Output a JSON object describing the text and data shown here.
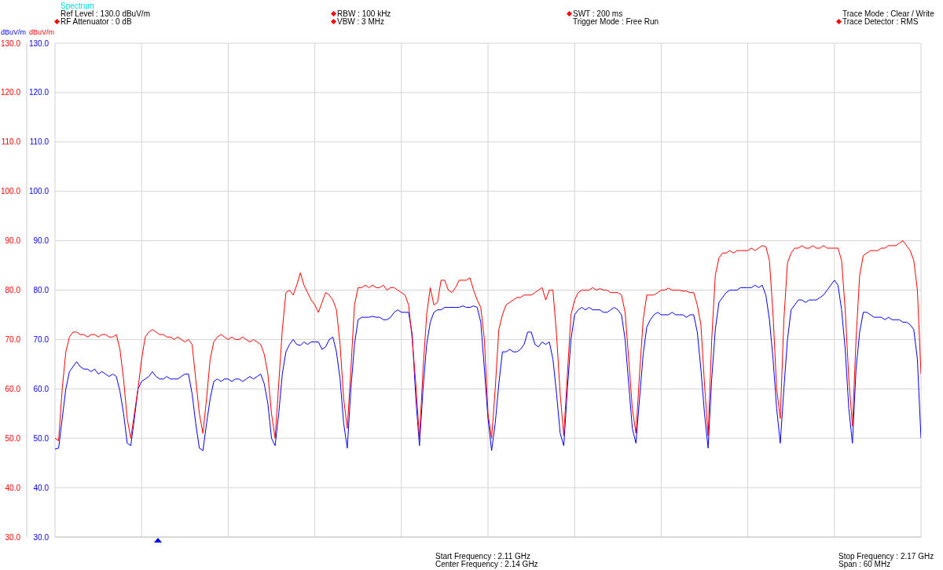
{
  "chart_data": {
    "type": "line",
    "title": "Spectrum",
    "ylabel": "dBuV/m",
    "y2label": "dBuV/m",
    "annotations": [
      "Ref Level : 130.0 dBuV/m",
      "RF Attenuator : 0 dB",
      "RBW : 100 kHz",
      "VBW : 3 MHz",
      "SWT : 200 ms",
      "Trigger Mode : Free Run",
      "Trace Mode : Clear / Write",
      "Trace Detector : RMS",
      "Start Frequency : 2.11 GHz",
      "Center Frequency : 2.14 GHz",
      "Stop Frequency : 2.17 GHz",
      "Span : 60 MHz"
    ],
    "categories": [
      null,
      null,
      null,
      null,
      null,
      null,
      null,
      null,
      null,
      null,
      null,
      null,
      null,
      null,
      null,
      null,
      null,
      null,
      null,
      null,
      null,
      null,
      null,
      null,
      null,
      null,
      null,
      null,
      null,
      null,
      null,
      null,
      null,
      null,
      null,
      null,
      null,
      null,
      null,
      null,
      null,
      null,
      null,
      null,
      null,
      null,
      null,
      null,
      null,
      null,
      null,
      null,
      null,
      null,
      null,
      null,
      null,
      null,
      null,
      null,
      null,
      null,
      null,
      null,
      null,
      null,
      null,
      null,
      null,
      null,
      null,
      null,
      null,
      null,
      null,
      null,
      null,
      null,
      null,
      null,
      null,
      null,
      null,
      null,
      null,
      null,
      null,
      null,
      null,
      null,
      null,
      null,
      null,
      null,
      null,
      null,
      null,
      null,
      null,
      null,
      null,
      null,
      null,
      null,
      null,
      null,
      null,
      null,
      null,
      null,
      null,
      null,
      null,
      null,
      null,
      null,
      null,
      null,
      null,
      null,
      null,
      null,
      null,
      null,
      null,
      null,
      null,
      null,
      null,
      null,
      null,
      null,
      null,
      null,
      null,
      null,
      null,
      null,
      null,
      null,
      null,
      null,
      null,
      null,
      null,
      null,
      null,
      null,
      null,
      null,
      null,
      null,
      null,
      null,
      null,
      null,
      null,
      null,
      null,
      null,
      null,
      null,
      null,
      null,
      null,
      null,
      null,
      null,
      null,
      null,
      null,
      null,
      null,
      null,
      null,
      null,
      null,
      null,
      null,
      null,
      null,
      null,
      null,
      null,
      null,
      null,
      null,
      null,
      null,
      null,
      null,
      null,
      null,
      null,
      null,
      null,
      null,
      null,
      null,
      null,
      null,
      null,
      null,
      null,
      null,
      null,
      null,
      null,
      null,
      null,
      null,
      null,
      null,
      null,
      null,
      null,
      null,
      null,
      null,
      null,
      null,
      null,
      null,
      null,
      null,
      null,
      null,
      null,
      null,
      null,
      null,
      null,
      null,
      null,
      null,
      null,
      null,
      null,
      null,
      null,
      null
    ],
    "ylim": [
      30,
      130
    ],
    "yticks": [
      {
        "value": 30,
        "label": "30.0"
      },
      {
        "value": 40,
        "label": "40.0"
      },
      {
        "value": 50,
        "label": "50.0"
      },
      {
        "value": 60,
        "label": "60.0"
      },
      {
        "value": 70,
        "label": "70.0"
      },
      {
        "value": 80,
        "label": "80.0"
      },
      {
        "value": 90,
        "label": "90.0"
      },
      {
        "value": 100,
        "label": "100.0"
      },
      {
        "value": 110,
        "label": "110.0"
      },
      {
        "value": 120,
        "label": "120.0"
      },
      {
        "value": 130,
        "label": "130.0"
      }
    ],
    "y2lim": [
      30,
      130
    ],
    "y2ticks": [
      {
        "value": 30,
        "label": "30.0"
      },
      {
        "value": 40,
        "label": "40.0"
      },
      {
        "value": 50,
        "label": "50.0"
      },
      {
        "value": 60,
        "label": "60.0"
      },
      {
        "value": 70,
        "label": "70.0"
      },
      {
        "value": 80,
        "label": "80.0"
      },
      {
        "value": 90,
        "label": "90.0"
      },
      {
        "value": 100,
        "label": "100.0"
      },
      {
        "value": 110,
        "label": "110.0"
      },
      {
        "value": 120,
        "label": "120.0"
      },
      {
        "value": 130,
        "label": "130.0"
      }
    ],
    "grid": true,
    "marker": "none",
    "line_style": "solid",
    "series": [
      {
        "color": "#0000ff",
        "axis": "y",
        "values": [
          47.8,
          48,
          54,
          60,
          63.5,
          64.5,
          65.5,
          64.5,
          64,
          64,
          63.5,
          64,
          63,
          63.5,
          63,
          62.5,
          63,
          62.5,
          59.5,
          55,
          49,
          48.5,
          54,
          60,
          61.5,
          62,
          62.5,
          63.5,
          62.5,
          62,
          62,
          62.5,
          62,
          62,
          62,
          62.5,
          63,
          63,
          59,
          53,
          48,
          47.5,
          53,
          58,
          61.5,
          62,
          61.5,
          62,
          62,
          61.5,
          62,
          62,
          61.5,
          62,
          62.5,
          62,
          62.5,
          63,
          61,
          57,
          50,
          48.5,
          55,
          63,
          67.5,
          69,
          70,
          69,
          68.8,
          69.5,
          69,
          69.5,
          69.5,
          69.5,
          68,
          68.5,
          70,
          70.5,
          67.5,
          62,
          53,
          48,
          60,
          69,
          74,
          74.5,
          74.5,
          74.5,
          74.7,
          74.5,
          74.5,
          74,
          74,
          74.5,
          75.5,
          76,
          75.5,
          75.5,
          75.5,
          71,
          58,
          48.5,
          60,
          69,
          73.5,
          75.5,
          76,
          76,
          76.5,
          76.5,
          76.5,
          76.5,
          76.5,
          76.8,
          76.5,
          76.5,
          76.8,
          76.5,
          73.5,
          64,
          54,
          47.5,
          53,
          61,
          67.5,
          67.5,
          68,
          67.5,
          67.5,
          68,
          69,
          71.5,
          71.5,
          69,
          68.5,
          69.5,
          69,
          69.5,
          66,
          59,
          51,
          48.5,
          60,
          70,
          75,
          76,
          76.5,
          76,
          76.5,
          76,
          76,
          76,
          75.5,
          75.5,
          76,
          76.5,
          76,
          75,
          70,
          61,
          52,
          49,
          58,
          67,
          72.5,
          74,
          75,
          75.5,
          75,
          75,
          75,
          75.5,
          75,
          75,
          75,
          74.5,
          75,
          75,
          71.5,
          64,
          55,
          48,
          62,
          72,
          77.5,
          78.5,
          79.5,
          80,
          80,
          80,
          80.5,
          80.5,
          80.5,
          80.5,
          81,
          80.5,
          81,
          79,
          74,
          66,
          56,
          49,
          60,
          70,
          76,
          77,
          78,
          78,
          77.5,
          78,
          78,
          78,
          78.5,
          79,
          80,
          81,
          82,
          81,
          76,
          68,
          56,
          49,
          64,
          71.5,
          75.5,
          75.5,
          75,
          74.5,
          74.5,
          74.5,
          74,
          74.5,
          74,
          74,
          74,
          73.5,
          73.5,
          73,
          72,
          66,
          50
        ]
      },
      {
        "color": "#ff0000",
        "axis": "y2",
        "values": [
          50,
          49.5,
          60,
          67.5,
          70.5,
          71.5,
          71.5,
          71,
          71,
          70.5,
          71,
          71,
          70.5,
          71,
          71,
          70.5,
          70.5,
          71,
          68,
          62,
          54,
          50,
          55,
          60,
          66,
          70.5,
          71.5,
          72,
          71.5,
          71,
          71,
          70.5,
          70.5,
          70,
          70.5,
          70,
          69.5,
          70,
          69,
          62,
          55,
          51,
          58,
          66,
          69.5,
          70.5,
          71,
          70.5,
          70,
          70.5,
          70,
          70,
          70.5,
          70,
          69.5,
          70,
          69.5,
          69,
          67,
          63,
          55,
          50,
          61,
          72,
          79.5,
          80,
          79,
          81,
          83.5,
          81,
          79.5,
          78,
          77,
          75.5,
          77.5,
          79.5,
          79,
          78,
          76,
          69,
          58,
          52,
          64,
          77,
          80.5,
          80.5,
          81,
          80.5,
          81,
          80.5,
          80.5,
          81,
          80,
          80.5,
          80.5,
          80,
          79.5,
          79,
          77,
          70,
          61,
          50,
          64,
          75,
          80.5,
          77,
          77.5,
          82,
          82,
          80,
          79.5,
          80.5,
          82,
          82,
          82,
          82.5,
          80,
          78,
          76.5,
          70,
          55,
          50,
          60,
          72,
          75,
          77,
          77.5,
          78,
          78.5,
          78.5,
          79,
          79,
          79,
          79.5,
          80,
          80.5,
          78,
          80,
          80,
          71,
          59,
          50.5,
          63,
          75,
          78,
          79.5,
          80,
          80,
          80,
          80.5,
          80,
          80.3,
          80,
          80,
          79.5,
          79.5,
          79.5,
          79,
          75.5,
          66,
          56,
          51,
          63,
          74,
          79,
          79,
          79,
          79.5,
          80,
          80,
          80.4,
          80,
          80,
          80,
          79.8,
          79.8,
          79.5,
          79.5,
          77,
          73,
          61,
          50.5,
          70,
          83,
          86.5,
          87.5,
          87.5,
          88,
          87.5,
          88,
          88,
          88,
          88,
          88.5,
          88,
          88.5,
          89,
          88.8,
          86,
          75,
          60,
          54,
          74,
          85.5,
          87.5,
          88.5,
          88.5,
          89,
          88.5,
          88.5,
          89,
          88.5,
          88.5,
          89,
          88.5,
          88.5,
          88.5,
          88.5,
          86,
          76,
          62,
          52.5,
          70,
          83,
          87,
          87.5,
          88,
          88,
          88,
          88.5,
          88.5,
          89,
          89,
          89,
          89.5,
          90,
          89,
          88,
          86,
          80,
          63
        ]
      }
    ]
  }
}
